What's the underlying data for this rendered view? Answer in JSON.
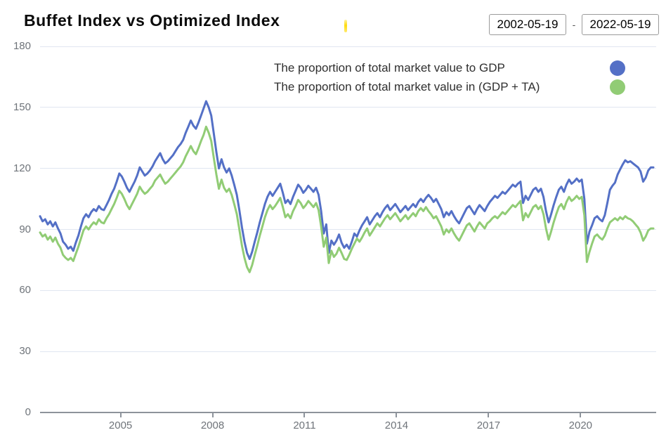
{
  "header": {
    "title": "Buffet Index vs Optimized Index",
    "date_range": {
      "start": "2002-05-19",
      "separator": "-",
      "end": "2022-05-19"
    }
  },
  "legend": {
    "items": [
      {
        "label": "The proportion of total market value to GDP",
        "color": "#5470c6"
      },
      {
        "label": "The proportion of total market value in (GDP + TA)",
        "color": "#91cc75"
      }
    ]
  },
  "colors": {
    "background": "#ffffff",
    "grid_line": "#e0e6f1",
    "axis_line": "#8d939b",
    "axis_label": "#6f747a",
    "legend_text": "#2f2f2f",
    "title_text": "#0b0b0b",
    "date_border": "#9b9b9b",
    "caret_artifact": "#ffd900",
    "series_blue": "#5470c6",
    "series_green": "#91cc75"
  },
  "chart_data": {
    "type": "line",
    "title": "Buffet Index vs Optimized Index",
    "x_unit": "month",
    "x_start": "2002-05",
    "x_end": "2022-05",
    "x_domain_years": [
      2002.375,
      2022.375
    ],
    "x_ticks": [
      {
        "label": "2005",
        "year": 2005
      },
      {
        "label": "2008",
        "year": 2008
      },
      {
        "label": "2011",
        "year": 2011
      },
      {
        "label": "2014",
        "year": 2014
      },
      {
        "label": "2017",
        "year": 2017
      },
      {
        "label": "2020",
        "year": 2020
      }
    ],
    "y_ticks": [
      0,
      30,
      60,
      90,
      120,
      150,
      180
    ],
    "ylim": [
      0,
      180
    ],
    "grid": true,
    "legend_position": "top-right",
    "line_width": 3,
    "series": [
      {
        "name": "The proportion of total market value to GDP",
        "color": "#5470c6",
        "values": [
          96.5,
          94,
          95,
          92.5,
          94,
          91.5,
          93.5,
          90.5,
          88,
          84,
          82.5,
          80.5,
          81.5,
          79.5,
          83.5,
          87,
          91.5,
          95.5,
          97.5,
          96,
          98.5,
          100,
          99,
          101.5,
          100,
          99.5,
          102,
          104.5,
          107.5,
          110,
          113.5,
          117.5,
          116,
          113.5,
          110.5,
          108.5,
          111,
          113.5,
          116.5,
          120.5,
          118.5,
          116.5,
          117.5,
          119,
          121,
          123.5,
          125.5,
          127.5,
          124.5,
          122.5,
          123.5,
          125,
          126.5,
          128.5,
          130.5,
          132,
          134,
          137.5,
          140.5,
          143.5,
          141,
          139.5,
          142.5,
          146,
          149.5,
          153,
          150,
          146,
          137,
          128,
          120,
          124.5,
          120.5,
          118,
          120,
          116.5,
          112,
          107,
          99.5,
          91,
          84,
          78.5,
          75.5,
          79,
          84,
          88.5,
          93.5,
          98,
          102.5,
          106,
          108.5,
          106.5,
          108.5,
          110.5,
          112.5,
          108,
          103,
          104.5,
          102.5,
          106,
          109,
          112,
          110.5,
          108,
          109.5,
          111.5,
          110,
          108.5,
          110.5,
          107,
          99,
          88,
          92.5,
          78.5,
          84.5,
          82.5,
          84.5,
          87.5,
          83.5,
          81,
          82.5,
          80.5,
          84,
          88,
          86.5,
          89.5,
          92,
          94,
          96,
          92.5,
          94.5,
          96.5,
          98,
          96,
          98.5,
          100.5,
          102,
          99.5,
          101,
          102.5,
          100.5,
          98.5,
          100,
          101.5,
          99.5,
          101,
          102.5,
          101,
          103.5,
          105,
          103.5,
          105.5,
          107,
          105.5,
          103.5,
          105,
          102.5,
          100,
          96,
          98.5,
          97,
          99,
          96.5,
          94.5,
          93,
          95.5,
          98,
          100.5,
          101.5,
          99.5,
          97.5,
          100,
          102,
          100.5,
          99,
          101.5,
          103.5,
          105,
          106.5,
          105.5,
          107,
          108.5,
          107.5,
          109,
          110.5,
          112,
          111,
          112.5,
          113.5,
          103,
          106.5,
          104.5,
          107,
          109.5,
          110.5,
          108.5,
          110,
          106,
          99,
          93.5,
          97.5,
          102,
          106,
          109.5,
          111,
          108.5,
          112,
          114.5,
          112.5,
          113.5,
          115,
          113.5,
          114.5,
          105,
          83,
          89,
          92,
          95.5,
          96.5,
          95,
          94,
          97,
          103,
          109.5,
          111.5,
          113,
          117,
          119.5,
          122,
          124,
          123,
          123.5,
          122.5,
          121.5,
          120.5,
          118.5,
          113.5,
          115.5,
          119,
          120.5,
          120.5
        ]
      },
      {
        "name": "The proportion of total market value in (GDP + TA)",
        "color": "#91cc75",
        "values": [
          88.5,
          86.5,
          87.5,
          85,
          86.5,
          84,
          86,
          83,
          81,
          77.5,
          76,
          75,
          76,
          74.5,
          78,
          81.5,
          85.5,
          89.5,
          91.5,
          90,
          92,
          93.5,
          92.5,
          95,
          93.5,
          93,
          95.5,
          97.5,
          100,
          102.5,
          105.5,
          109,
          107.5,
          105,
          102,
          100,
          102.5,
          105,
          107.5,
          111,
          109,
          107.5,
          108.5,
          110,
          111.5,
          114,
          115.5,
          117,
          114.5,
          112.5,
          113.5,
          115,
          116.5,
          118,
          119.5,
          121,
          123,
          126,
          128.5,
          131,
          128.5,
          127,
          130,
          133.5,
          136.5,
          140.5,
          137.5,
          133.5,
          125,
          117,
          110,
          114.5,
          110.5,
          108.5,
          110,
          107,
          102.5,
          97.5,
          90,
          82,
          76,
          71.5,
          69,
          72.5,
          77.5,
          82,
          87,
          91.5,
          96,
          99.5,
          102,
          100,
          101.5,
          103.5,
          105.5,
          101,
          96,
          97.5,
          95.5,
          99,
          101.5,
          104.5,
          103,
          100.5,
          102,
          104,
          102.5,
          101,
          103,
          99.5,
          91.5,
          81.5,
          86,
          73.5,
          79.5,
          76.5,
          78,
          81,
          78.5,
          75.5,
          75,
          77.5,
          80.5,
          83,
          85.5,
          84,
          86,
          88.5,
          90.5,
          87,
          89,
          91,
          93,
          91.5,
          93.5,
          95.5,
          97,
          95,
          96.5,
          98,
          96,
          94,
          95.5,
          97,
          95,
          96.5,
          98,
          96.5,
          99,
          100.5,
          99,
          101,
          99,
          97.5,
          95.5,
          96.5,
          94,
          91.5,
          87.5,
          90,
          88.5,
          90.5,
          88,
          86,
          84.5,
          87,
          89.5,
          92,
          93,
          91,
          89,
          91.5,
          93.5,
          92,
          90.5,
          93,
          94,
          95.5,
          96.5,
          95.5,
          97,
          98.5,
          97.5,
          99,
          100.5,
          102,
          101,
          102.5,
          104,
          94.5,
          98,
          96,
          98.5,
          101,
          102,
          100,
          101.5,
          97.5,
          90.5,
          85,
          89,
          93.5,
          97.5,
          101,
          102.5,
          100,
          103.5,
          106,
          104,
          105,
          106.5,
          105,
          106,
          97,
          74,
          79,
          83,
          86.5,
          87.5,
          86,
          85,
          87,
          90.5,
          93.5,
          94.5,
          95.5,
          94.5,
          96,
          95,
          96.5,
          95.5,
          95,
          94,
          92.5,
          91,
          88.5,
          84.5,
          86.5,
          89.5,
          90.5,
          90.5
        ]
      }
    ]
  }
}
